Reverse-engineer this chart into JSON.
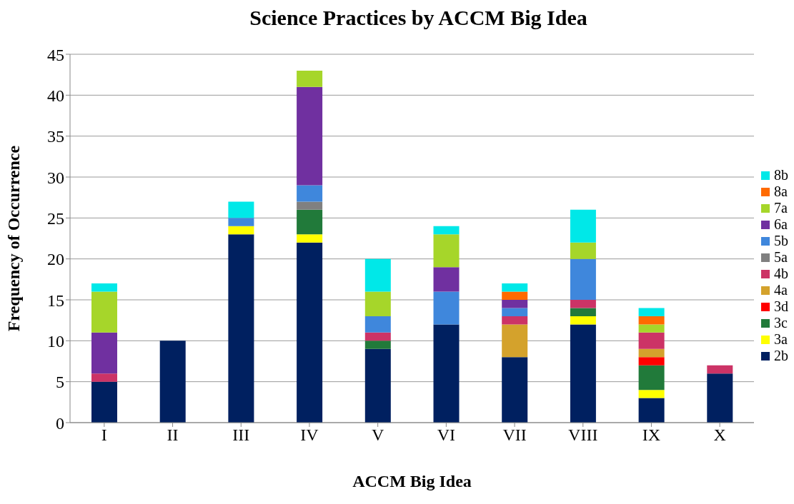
{
  "chart_data": {
    "type": "bar",
    "title": "Science Practices by ACCM Big Idea",
    "xlabel": "ACCM Big Idea",
    "ylabel": "Frequency of Occurrence",
    "categories": [
      "I",
      "II",
      "III",
      "IV",
      "V",
      "VI",
      "VII",
      "VIII",
      "IX",
      "X"
    ],
    "stacked": true,
    "ylim": [
      0,
      45
    ],
    "yticks": [
      0,
      5,
      10,
      15,
      20,
      25,
      30,
      35,
      40,
      45
    ],
    "grid": "y",
    "legend": "right",
    "series": [
      {
        "name": "2b",
        "color": "#002060",
        "values": [
          5,
          10,
          23,
          22,
          9,
          12,
          8,
          12,
          3,
          6
        ]
      },
      {
        "name": "3a",
        "color": "#ffff00",
        "values": [
          0,
          0,
          1,
          1,
          0,
          0,
          0,
          1,
          1,
          0
        ]
      },
      {
        "name": "3c",
        "color": "#217a3a",
        "values": [
          0,
          0,
          0,
          3,
          1,
          0,
          0,
          1,
          3,
          0
        ]
      },
      {
        "name": "3d",
        "color": "#ff0000",
        "values": [
          0,
          0,
          0,
          0,
          0,
          0,
          0,
          0,
          1,
          0
        ]
      },
      {
        "name": "4a",
        "color": "#d4a22c",
        "values": [
          0,
          0,
          0,
          0,
          0,
          0,
          4,
          0,
          1,
          0
        ]
      },
      {
        "name": "4b",
        "color": "#cc3366",
        "values": [
          1,
          0,
          0,
          0,
          1,
          0,
          1,
          1,
          2,
          1
        ]
      },
      {
        "name": "5a",
        "color": "#808080",
        "values": [
          0,
          0,
          0,
          1,
          0,
          0,
          0,
          0,
          0,
          0
        ]
      },
      {
        "name": "5b",
        "color": "#3f87dc",
        "values": [
          0,
          0,
          1,
          2,
          2,
          4,
          1,
          5,
          0,
          0
        ]
      },
      {
        "name": "6a",
        "color": "#7030a0",
        "values": [
          5,
          0,
          0,
          12,
          0,
          3,
          1,
          0,
          0,
          0
        ]
      },
      {
        "name": "7a",
        "color": "#a6d62a",
        "values": [
          5,
          0,
          0,
          2,
          3,
          4,
          0,
          2,
          1,
          0
        ]
      },
      {
        "name": "8a",
        "color": "#ff6a00",
        "values": [
          0,
          0,
          0,
          0,
          0,
          0,
          1,
          0,
          1,
          0
        ]
      },
      {
        "name": "8b",
        "color": "#00e8e8",
        "values": [
          1,
          0,
          2,
          0,
          4,
          1,
          1,
          4,
          1,
          0
        ]
      }
    ]
  }
}
